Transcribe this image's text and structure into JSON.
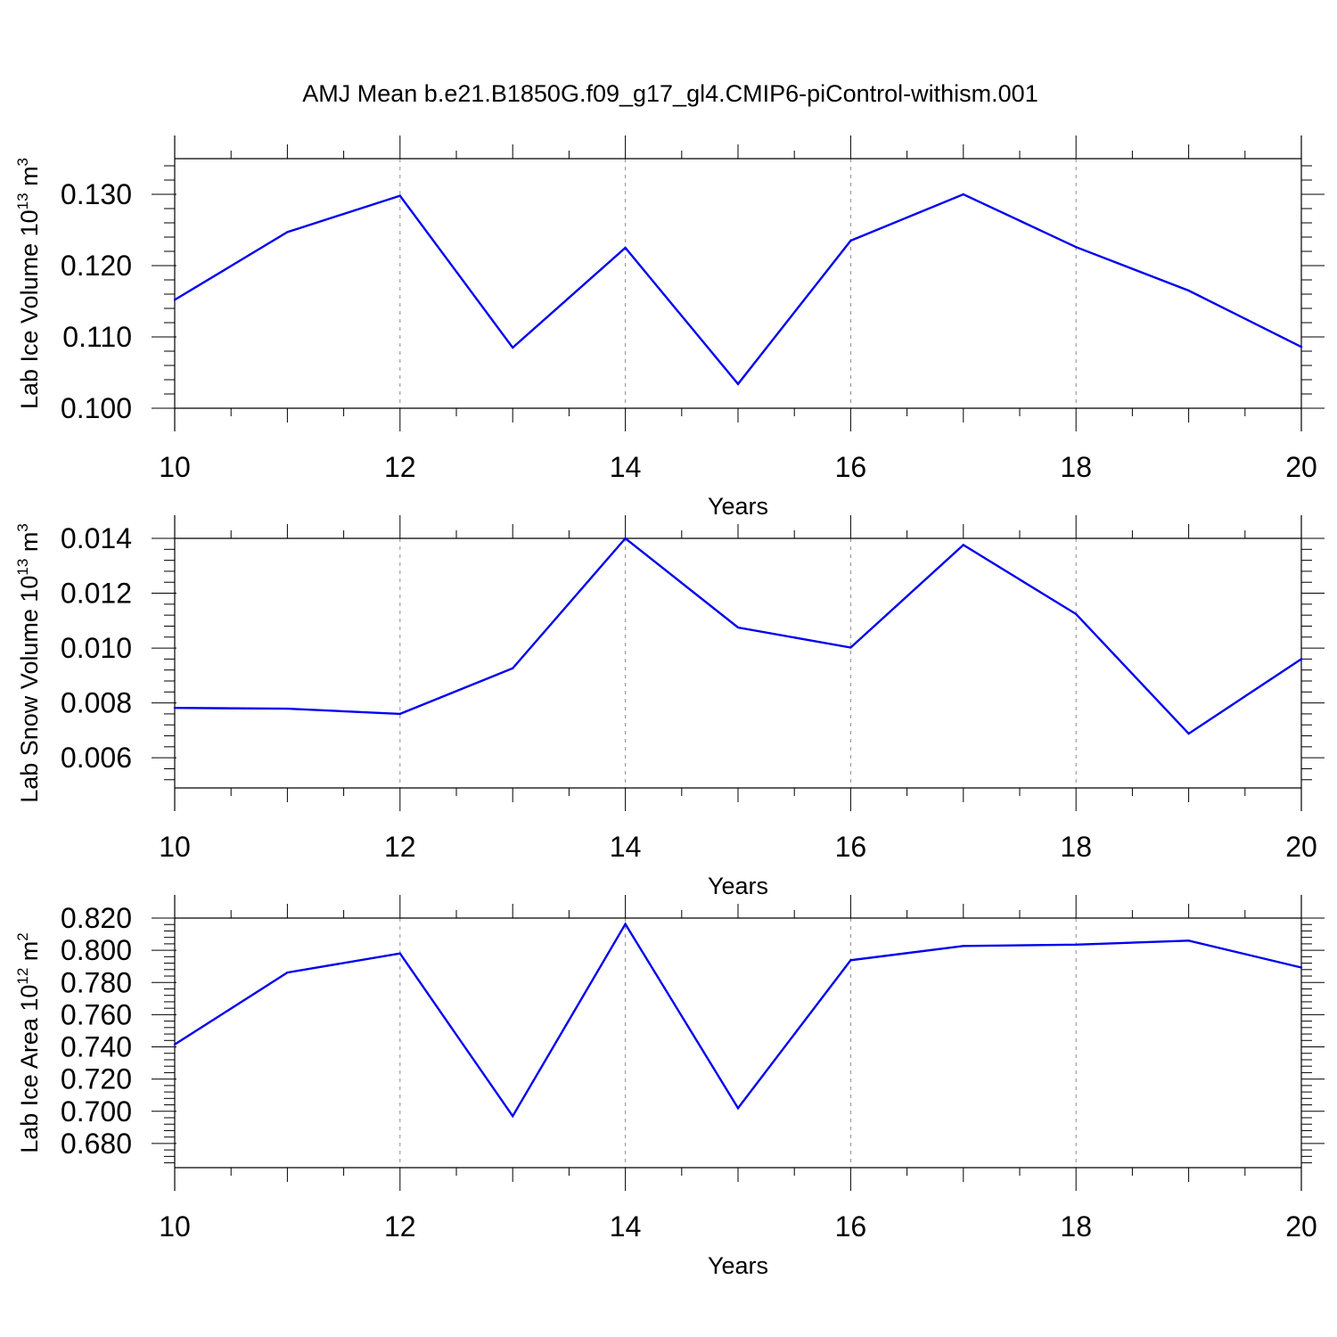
{
  "title": "AMJ Mean b.e21.B1850G.f09_g17_gl4.CMIP6-piControl-withism.001",
  "colors": {
    "line": "#0000ee",
    "grid": "#8a8a8a",
    "axis": "#000000"
  },
  "chart_data": [
    {
      "type": "line",
      "xlabel": "Years",
      "ylabel": {
        "text": "Lab Ice Volume 10",
        "sup": "13",
        "unit": " m",
        "unit_sup": "3"
      },
      "xlim": [
        10,
        20
      ],
      "ylim": [
        0.1,
        0.135
      ],
      "x_ticks": [
        "10",
        "12",
        "14",
        "16",
        "18",
        "20"
      ],
      "y_ticks": [
        "0.100",
        "0.110",
        "0.120",
        "0.130"
      ],
      "grid": "vertical dashed at major x ticks",
      "x": [
        10,
        11,
        12,
        13,
        14,
        15,
        16,
        17,
        18,
        19,
        20
      ],
      "values": [
        0.1152,
        0.1247,
        0.1298,
        0.1085,
        0.1225,
        0.1034,
        0.1235,
        0.13,
        0.1226,
        0.1165,
        0.1086
      ]
    },
    {
      "type": "line",
      "xlabel": "Years",
      "ylabel": {
        "text": "Lab Snow Volume 10",
        "sup": "13",
        "unit": " m",
        "unit_sup": "3"
      },
      "xlim": [
        10,
        20
      ],
      "ylim": [
        0.0049,
        0.014
      ],
      "x_ticks": [
        "10",
        "12",
        "14",
        "16",
        "18",
        "20"
      ],
      "y_ticks": [
        "0.006",
        "0.008",
        "0.010",
        "0.012",
        "0.014"
      ],
      "grid": "vertical dashed at major x ticks",
      "x": [
        10,
        11,
        12,
        13,
        14,
        15,
        16,
        17,
        18,
        19,
        20
      ],
      "values": [
        0.00782,
        0.00779,
        0.0076,
        0.00926,
        0.014,
        0.01075,
        0.01002,
        0.01376,
        0.01124,
        0.00688,
        0.0096
      ]
    },
    {
      "type": "line",
      "xlabel": "Years",
      "ylabel": {
        "text": "Lab Ice Area 10",
        "sup": "12",
        "unit": " m",
        "unit_sup": "2"
      },
      "xlim": [
        10,
        20
      ],
      "ylim": [
        0.665,
        0.82
      ],
      "x_ticks": [
        "10",
        "12",
        "14",
        "16",
        "18",
        "20"
      ],
      "y_ticks": [
        "0.680",
        "0.700",
        "0.720",
        "0.740",
        "0.760",
        "0.780",
        "0.800",
        "0.820"
      ],
      "grid": "vertical dashed at major x ticks",
      "x": [
        10,
        11,
        12,
        13,
        14,
        15,
        16,
        17,
        18,
        19,
        20
      ],
      "values": [
        0.7415,
        0.7862,
        0.798,
        0.697,
        0.8163,
        0.702,
        0.7938,
        0.8027,
        0.8035,
        0.806,
        0.7893
      ]
    }
  ]
}
